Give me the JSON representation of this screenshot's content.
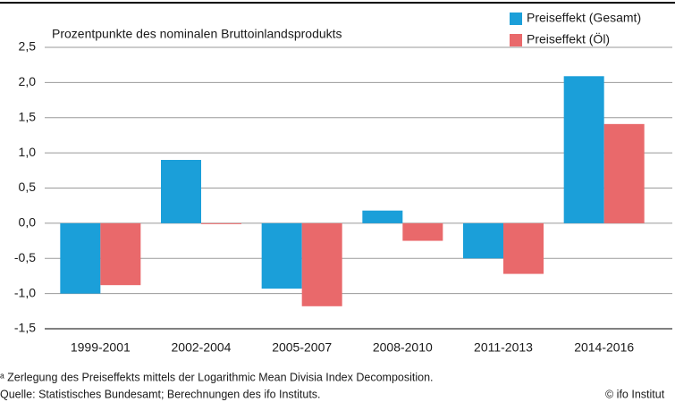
{
  "chart_data": {
    "type": "bar",
    "ylabel": "Prozentpunkte des nominalen Bruttoinlandsprodukts",
    "categories": [
      "1999-2001",
      "2002-2004",
      "2005-2007",
      "2008-2010",
      "2011-2013",
      "2014-2016"
    ],
    "series": [
      {
        "name": "Preiseffekt (Gesamt)",
        "color": "#1b9fd9",
        "values": [
          -1.0,
          0.9,
          -0.93,
          0.18,
          -0.5,
          2.09
        ]
      },
      {
        "name": "Preiseffekt (Öl)",
        "color": "#e9696b",
        "values": [
          -0.88,
          -0.01,
          -1.18,
          -0.25,
          -0.72,
          1.41
        ]
      }
    ],
    "ylim": [
      -1.5,
      2.5
    ],
    "yticks": [
      {
        "value": -1.5,
        "label": "-1,5"
      },
      {
        "value": -1.0,
        "label": "-1,0"
      },
      {
        "value": -0.5,
        "label": "-0,5"
      },
      {
        "value": 0,
        "label": "0,0"
      },
      {
        "value": 0.5,
        "label": "0,5"
      },
      {
        "value": 1.0,
        "label": "1,0"
      },
      {
        "value": 1.5,
        "label": "1,5"
      },
      {
        "value": 2.0,
        "label": "2,0"
      },
      {
        "value": 2.5,
        "label": "2,5"
      }
    ],
    "grid": true,
    "legend": "top-right",
    "footnote": "ᵃ Zerlegung des Preiseffekts mittels der Logarithmic Mean Divisia Index Decomposition.",
    "source": "Quelle: Statistisches Bundesamt; Berechnungen des ifo Instituts.",
    "copyright": "© ifo Institut"
  }
}
